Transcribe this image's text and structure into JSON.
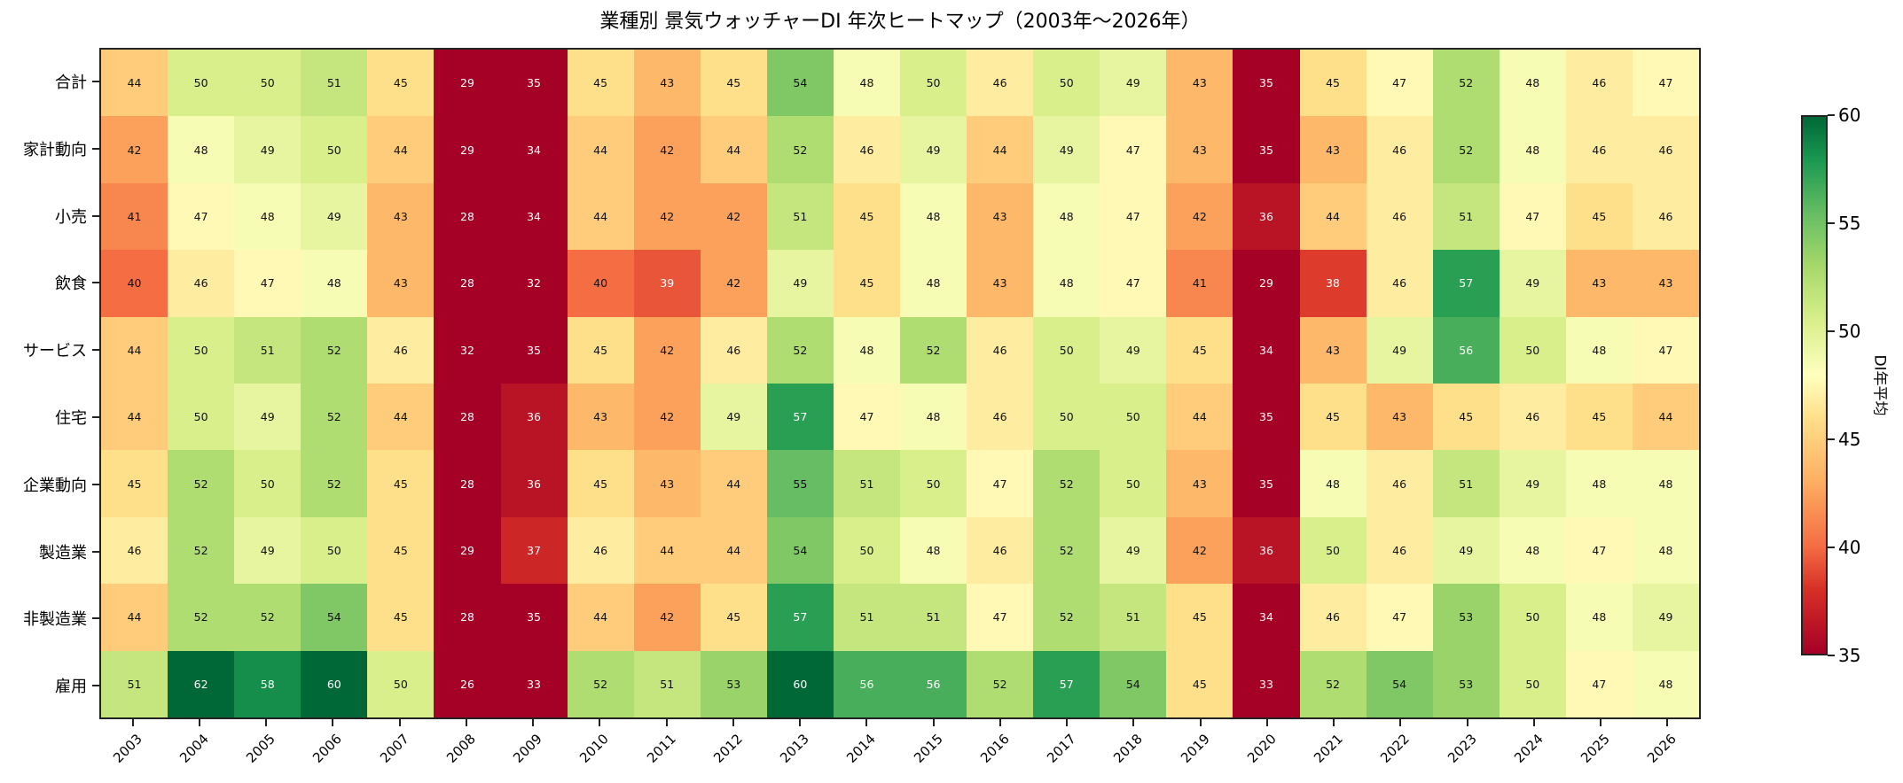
{
  "chart_data": {
    "type": "heatmap",
    "title": "業種別 景気ウォッチャーDI 年次ヒートマップ（2003年〜2026年）",
    "xlabel": "",
    "ylabel": "",
    "colorbar_label": "DI年平均",
    "colormap": "RdYlGn",
    "vmin": 35,
    "vmax": 60,
    "colorbar_ticks": [
      35,
      40,
      45,
      50,
      55,
      60
    ],
    "x": [
      "2003",
      "2004",
      "2005",
      "2006",
      "2007",
      "2008",
      "2009",
      "2010",
      "2011",
      "2012",
      "2013",
      "2014",
      "2015",
      "2016",
      "2017",
      "2018",
      "2019",
      "2020",
      "2021",
      "2022",
      "2023",
      "2024",
      "2025",
      "2026"
    ],
    "y": [
      "合計",
      "家計動向",
      "小売",
      "飲食",
      "サービス",
      "住宅",
      "企業動向",
      "製造業",
      "非製造業",
      "雇用"
    ],
    "values": [
      [
        44,
        50,
        50,
        51,
        45,
        29,
        35,
        45,
        43,
        45,
        54,
        48,
        50,
        46,
        50,
        49,
        43,
        35,
        45,
        47,
        52,
        48,
        46,
        47
      ],
      [
        42,
        48,
        49,
        50,
        44,
        29,
        34,
        44,
        42,
        44,
        52,
        46,
        49,
        44,
        49,
        47,
        43,
        35,
        43,
        46,
        52,
        48,
        46,
        46
      ],
      [
        41,
        47,
        48,
        49,
        43,
        28,
        34,
        44,
        42,
        42,
        51,
        45,
        48,
        43,
        48,
        47,
        42,
        36,
        44,
        46,
        51,
        47,
        45,
        46
      ],
      [
        40,
        46,
        47,
        48,
        43,
        28,
        32,
        40,
        39,
        42,
        49,
        45,
        48,
        43,
        48,
        47,
        41,
        29,
        38,
        46,
        57,
        49,
        43,
        43
      ],
      [
        44,
        50,
        51,
        52,
        46,
        32,
        35,
        45,
        42,
        46,
        52,
        48,
        52,
        46,
        50,
        49,
        45,
        34,
        43,
        49,
        56,
        50,
        48,
        47
      ],
      [
        44,
        50,
        49,
        52,
        44,
        28,
        36,
        43,
        42,
        49,
        57,
        47,
        48,
        46,
        50,
        50,
        44,
        35,
        45,
        43,
        45,
        46,
        45,
        44
      ],
      [
        45,
        52,
        50,
        52,
        45,
        28,
        36,
        45,
        43,
        44,
        55,
        51,
        50,
        47,
        52,
        50,
        43,
        35,
        48,
        46,
        51,
        49,
        48,
        48
      ],
      [
        46,
        52,
        49,
        50,
        45,
        29,
        37,
        46,
        44,
        44,
        54,
        50,
        48,
        46,
        52,
        49,
        42,
        36,
        50,
        46,
        49,
        48,
        47,
        48
      ],
      [
        44,
        52,
        52,
        54,
        45,
        28,
        35,
        44,
        42,
        45,
        57,
        51,
        51,
        47,
        52,
        51,
        45,
        34,
        46,
        47,
        53,
        50,
        48,
        49
      ],
      [
        51,
        62,
        58,
        60,
        50,
        26,
        33,
        52,
        51,
        53,
        60,
        56,
        56,
        52,
        57,
        54,
        45,
        33,
        52,
        54,
        53,
        50,
        47,
        48
      ]
    ]
  },
  "colors": {
    "stops": [
      "#a50026",
      "#d73027",
      "#f46d43",
      "#fdae61",
      "#fee08b",
      "#ffffbf",
      "#d9ef8b",
      "#a6d96a",
      "#66bd63",
      "#1a9850",
      "#006837"
    ],
    "axis": "#222222"
  }
}
